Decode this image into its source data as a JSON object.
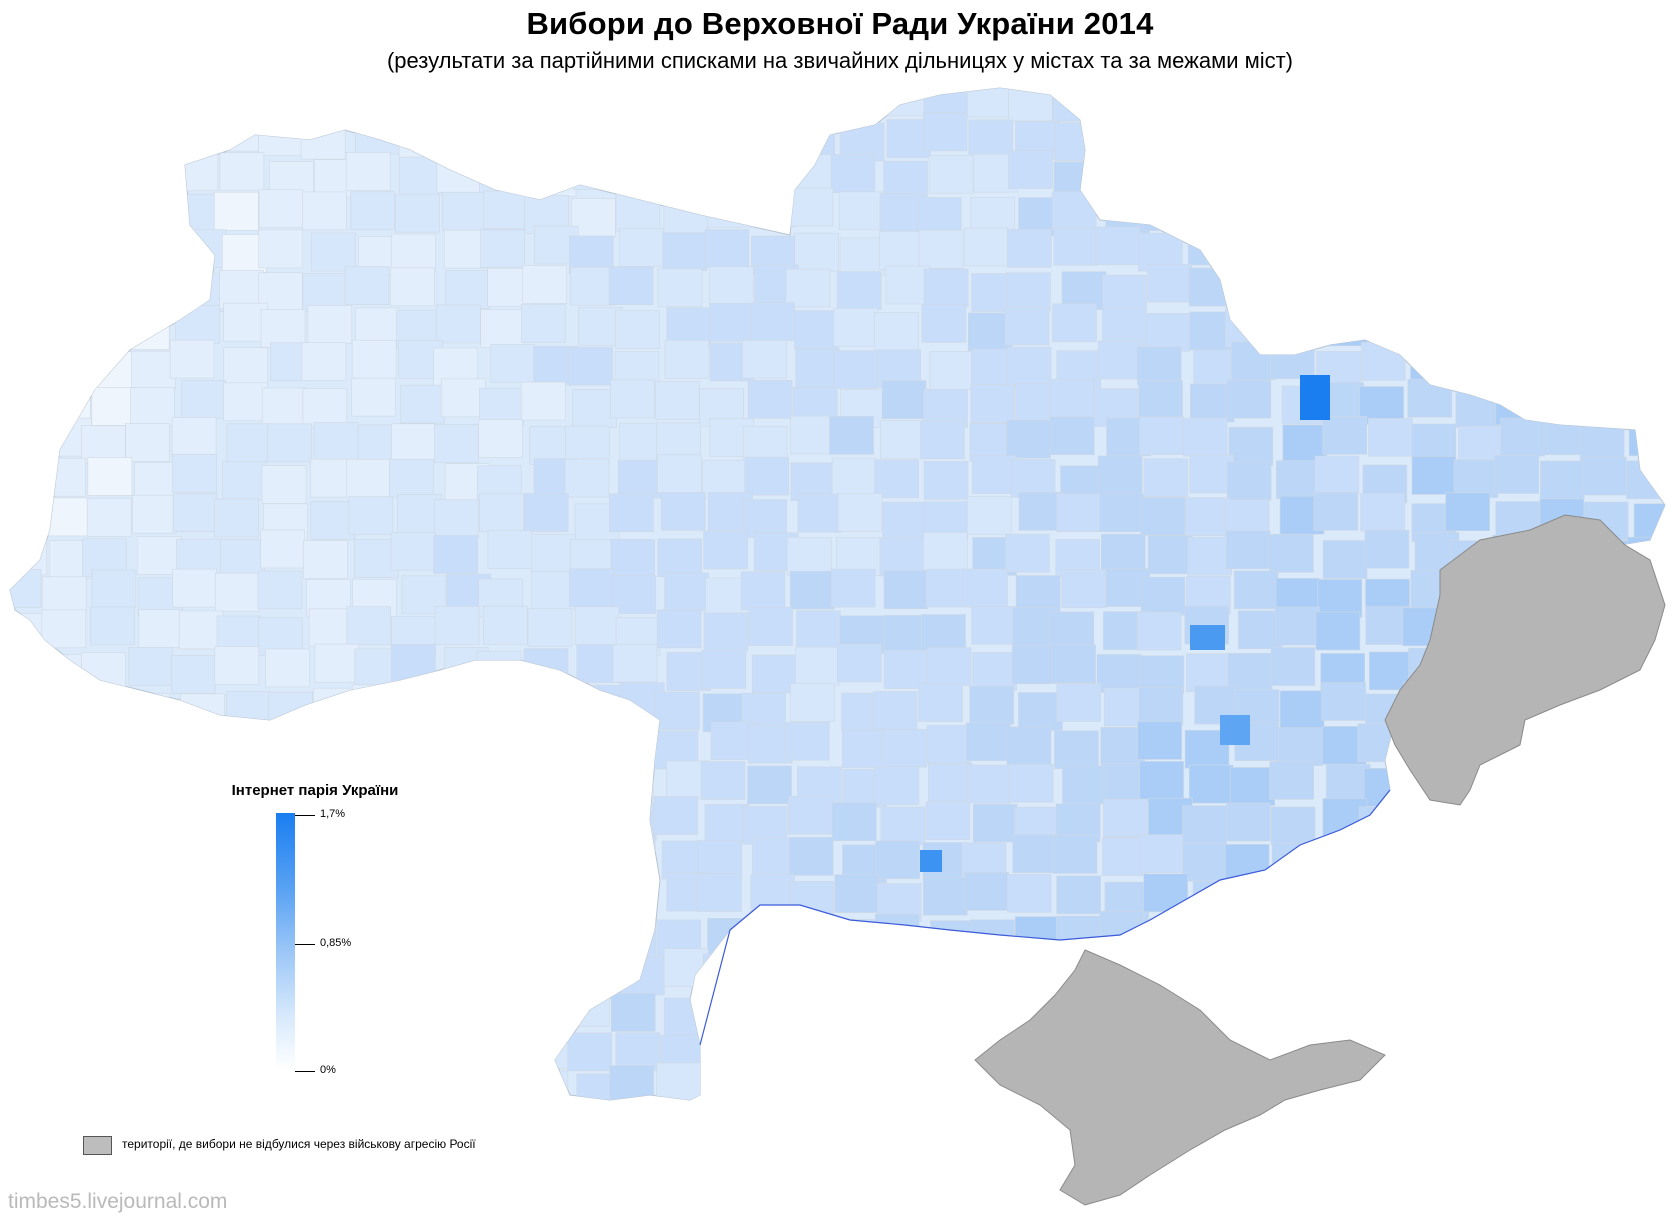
{
  "header": {
    "title": "Вибори до Верховної Ради України 2014",
    "subtitle": "(результати за партійними списками на звичайних дільницях у містах та за межами міст)"
  },
  "legend": {
    "title": "Інтернет парія України",
    "max_label": "1,7%",
    "mid_label": "0,85%",
    "min_label": "0%",
    "gradient_colors": [
      "#1a7ef0",
      "#ffffff"
    ]
  },
  "gray_legend": {
    "label": "території, де вибори не відбулися через військову агресію Росії",
    "color": "#bdbdbd"
  },
  "map": {
    "fill_color": "#dbeafb",
    "border_color": "#cfd8e2",
    "coast_color": "#3b5bdb",
    "occupied_color": "#b5b5b5"
  },
  "watermark": "timbes5.livejournal.com"
}
